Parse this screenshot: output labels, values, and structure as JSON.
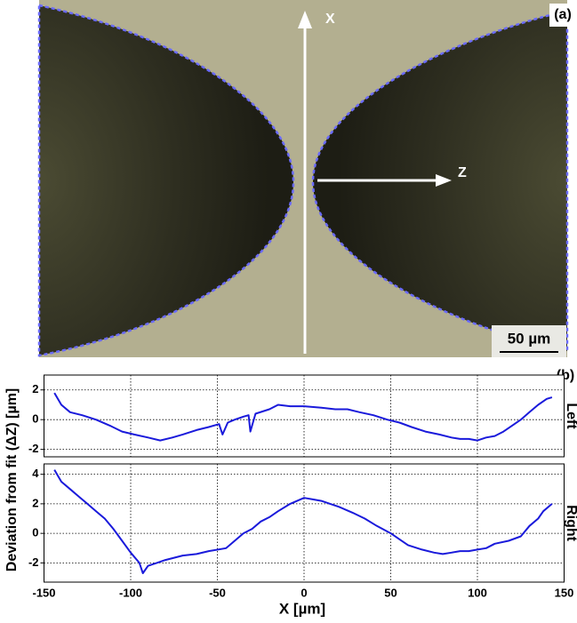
{
  "image": {
    "panel_label": "(a)",
    "axis_x": "X",
    "axis_z": "Z",
    "scale_bar": "50 µm"
  },
  "figure": {
    "panel_label": "(b)",
    "xlabel": "X [µm]",
    "ylabel": "Deviation from fit (ΔZ) [µm]"
  },
  "chart_data": [
    {
      "type": "line",
      "side_label": "Left",
      "grid": true,
      "xlim": [
        -150,
        150
      ],
      "xticks": [
        -150,
        -100,
        -50,
        0,
        50,
        100,
        150
      ],
      "ylim": [
        -2.5,
        3
      ],
      "yticks": [
        2,
        0,
        -2
      ],
      "x": [
        -144,
        -140,
        -135,
        -128,
        -120,
        -112,
        -105,
        -98,
        -90,
        -83,
        -76,
        -70,
        -62,
        -55,
        -49,
        -47,
        -44,
        -40,
        -35,
        -32,
        -31,
        -28,
        -20,
        -15,
        -8,
        0,
        10,
        18,
        25,
        32,
        40,
        48,
        55,
        62,
        70,
        78,
        85,
        90,
        95,
        100,
        105,
        110,
        115,
        120,
        125,
        130,
        135,
        140,
        143
      ],
      "series": [
        {
          "name": "Left",
          "color": "#1a1adb",
          "values": [
            1.8,
            1.0,
            0.5,
            0.3,
            0.0,
            -0.4,
            -0.8,
            -1.0,
            -1.2,
            -1.4,
            -1.2,
            -1.0,
            -0.7,
            -0.5,
            -0.3,
            -1.0,
            -0.2,
            0.0,
            0.2,
            0.3,
            -0.8,
            0.4,
            0.7,
            1.0,
            0.9,
            0.9,
            0.8,
            0.7,
            0.7,
            0.5,
            0.3,
            0.0,
            -0.2,
            -0.5,
            -0.8,
            -1.0,
            -1.2,
            -1.3,
            -1.3,
            -1.4,
            -1.2,
            -1.1,
            -0.8,
            -0.4,
            0.0,
            0.5,
            1.0,
            1.4,
            1.5
          ]
        }
      ]
    },
    {
      "type": "line",
      "side_label": "Right",
      "grid": true,
      "xlim": [
        -150,
        150
      ],
      "xticks": [
        -150,
        -100,
        -50,
        0,
        50,
        100,
        150
      ],
      "ylim": [
        -3.3,
        4.7
      ],
      "yticks": [
        4,
        2,
        0,
        -2
      ],
      "x": [
        -144,
        -140,
        -135,
        -130,
        -125,
        -120,
        -115,
        -110,
        -105,
        -100,
        -95,
        -93,
        -90,
        -85,
        -80,
        -70,
        -62,
        -55,
        -45,
        -40,
        -35,
        -30,
        -25,
        -20,
        -15,
        -8,
        0,
        5,
        10,
        15,
        20,
        28,
        35,
        42,
        50,
        55,
        60,
        68,
        75,
        80,
        85,
        90,
        95,
        100,
        105,
        110,
        118,
        125,
        130,
        135,
        138,
        143
      ],
      "series": [
        {
          "name": "Right",
          "color": "#1a1adb",
          "values": [
            4.3,
            3.5,
            3.0,
            2.5,
            2.0,
            1.5,
            1.0,
            0.3,
            -0.5,
            -1.3,
            -2.0,
            -2.7,
            -2.2,
            -2.0,
            -1.8,
            -1.5,
            -1.4,
            -1.2,
            -1.0,
            -0.5,
            0.0,
            0.3,
            0.8,
            1.1,
            1.5,
            2.0,
            2.4,
            2.3,
            2.2,
            2.0,
            1.8,
            1.4,
            1.0,
            0.5,
            0.0,
            -0.4,
            -0.8,
            -1.1,
            -1.3,
            -1.4,
            -1.3,
            -1.2,
            -1.2,
            -1.1,
            -1.0,
            -0.7,
            -0.5,
            -0.2,
            0.5,
            1.0,
            1.5,
            2.0
          ]
        }
      ]
    }
  ]
}
